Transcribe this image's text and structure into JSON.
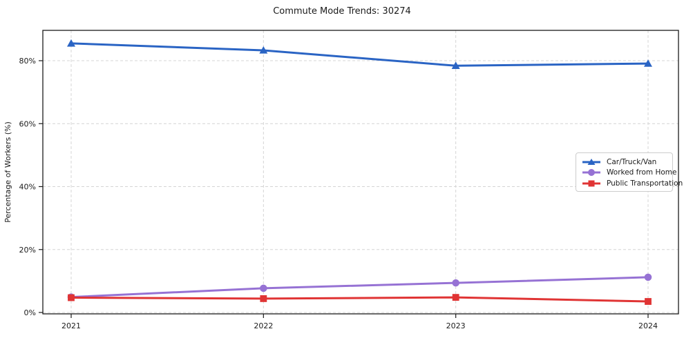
{
  "page": {
    "title": "Commute Mode Trends: 30274"
  },
  "chart_data": {
    "type": "line",
    "title": "Commute Mode Trends: 30274",
    "xlabel": "",
    "ylabel": "Percentage of Workers (%)",
    "categories": [
      "2021",
      "2022",
      "2023",
      "2024"
    ],
    "y_ticks": [
      0,
      20,
      40,
      60,
      80
    ],
    "y_tick_labels": [
      "0%",
      "20%",
      "40%",
      "60%",
      "80%"
    ],
    "ylim": [
      -0.5,
      89.8
    ],
    "grid": true,
    "grid_style": "dashed",
    "legend_position": "center-right",
    "colors": {
      "grid": "#d4d4d4",
      "spine": "#1a1a1a",
      "tick_text": "#1a1a1a"
    },
    "series": [
      {
        "name": "Car/Truck/Van",
        "color": "#2a64c4",
        "marker": "triangle",
        "values": [
          85.5,
          83.3,
          78.4,
          79.1
        ]
      },
      {
        "name": "Worked from Home",
        "color": "#9672d4",
        "marker": "circle",
        "values": [
          4.9,
          7.7,
          9.4,
          11.2
        ]
      },
      {
        "name": "Public Transportation",
        "color": "#e03434",
        "marker": "square",
        "values": [
          4.7,
          4.4,
          4.8,
          3.5
        ]
      }
    ]
  }
}
